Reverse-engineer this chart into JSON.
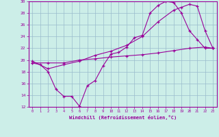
{
  "xlabel": "Windchill (Refroidissement éolien,°C)",
  "xlim": [
    -0.5,
    23.5
  ],
  "ylim": [
    12,
    30
  ],
  "xticks": [
    0,
    1,
    2,
    3,
    4,
    5,
    6,
    7,
    8,
    9,
    10,
    11,
    12,
    13,
    14,
    15,
    16,
    17,
    18,
    19,
    20,
    21,
    22,
    23
  ],
  "yticks": [
    12,
    14,
    16,
    18,
    20,
    22,
    24,
    26,
    28,
    30
  ],
  "bg_color": "#cceee8",
  "grid_color": "#99bbcc",
  "line_color": "#990099",
  "line1_x": [
    0,
    1,
    2,
    3,
    4,
    5,
    6,
    7,
    8,
    9,
    10,
    11,
    12,
    13,
    14,
    15,
    16,
    17,
    18,
    19,
    20,
    21,
    22,
    23
  ],
  "line1_y": [
    19.5,
    19.2,
    18.0,
    15.0,
    13.8,
    13.8,
    12.1,
    15.6,
    16.5,
    19.0,
    21.0,
    21.3,
    22.2,
    23.8,
    24.2,
    28.0,
    29.3,
    30.0,
    29.8,
    28.0,
    25.0,
    23.5,
    22.0,
    22.0
  ],
  "line2_x": [
    0,
    2,
    4,
    6,
    8,
    10,
    12,
    14,
    16,
    18,
    19,
    20,
    21,
    22,
    23
  ],
  "line2_y": [
    19.8,
    18.5,
    19.2,
    19.8,
    20.8,
    21.5,
    22.5,
    24.0,
    26.5,
    28.5,
    29.0,
    29.5,
    29.2,
    25.0,
    22.0
  ],
  "line3_x": [
    0,
    2,
    4,
    6,
    8,
    10,
    12,
    14,
    16,
    18,
    20,
    22,
    23
  ],
  "line3_y": [
    19.5,
    19.5,
    19.5,
    20.0,
    20.2,
    20.5,
    20.7,
    20.9,
    21.2,
    21.6,
    22.0,
    22.2,
    22.0
  ]
}
